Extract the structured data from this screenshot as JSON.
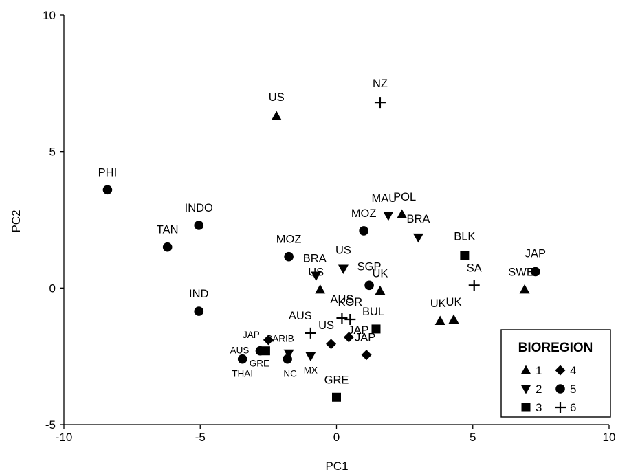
{
  "chart_data": {
    "type": "scatter",
    "xlabel": "PC1",
    "ylabel": "PC2",
    "xlim": [
      -10,
      10
    ],
    "ylim": [
      -5,
      10
    ],
    "xticks": [
      -10,
      -5,
      0,
      5,
      10
    ],
    "yticks": [
      -5,
      0,
      5,
      10
    ],
    "grid": false,
    "legend": {
      "title": "BIOREGION",
      "placement": "bottom-right",
      "entries": [
        {
          "label": "1",
          "marker": "triangle-up"
        },
        {
          "label": "4",
          "marker": "diamond"
        },
        {
          "label": "2",
          "marker": "triangle-down"
        },
        {
          "label": "5",
          "marker": "circle"
        },
        {
          "label": "3",
          "marker": "square"
        },
        {
          "label": "6",
          "marker": "plus"
        }
      ]
    },
    "points": [
      {
        "label": "US",
        "bioregion": 1,
        "x": -2.2,
        "y": 6.3
      },
      {
        "label": "POL",
        "bioregion": 1,
        "x": 2.4,
        "y": 2.7
      },
      {
        "label": "UK",
        "bioregion": 1,
        "x": 1.6,
        "y": -0.1
      },
      {
        "label": "US",
        "bioregion": 1,
        "x": -0.6,
        "y": -0.05
      },
      {
        "label": "UK",
        "bioregion": 1,
        "x": 3.8,
        "y": -1.2
      },
      {
        "label": "UK",
        "bioregion": 1,
        "x": 4.3,
        "y": -1.15
      },
      {
        "label": "SWE",
        "bioregion": 1,
        "x": 6.9,
        "y": -0.05
      },
      {
        "label": "MAU",
        "bioregion": 2,
        "x": 1.9,
        "y": 2.65
      },
      {
        "label": "BRA",
        "bioregion": 2,
        "x": 3.0,
        "y": 1.85
      },
      {
        "label": "US",
        "bioregion": 2,
        "x": 0.25,
        "y": 0.7
      },
      {
        "label": "BRA",
        "bioregion": 2,
        "x": -0.75,
        "y": 0.45
      },
      {
        "label": "CARIB",
        "bioregion": 2,
        "x": -1.75,
        "y": -2.4
      },
      {
        "label": "MX",
        "bioregion": 2,
        "x": -0.95,
        "y": -2.5
      },
      {
        "label": "BLK",
        "bioregion": 3,
        "x": 4.7,
        "y": 1.2
      },
      {
        "label": "BUL",
        "bioregion": 3,
        "x": 1.45,
        "y": -1.5
      },
      {
        "label": "GRE",
        "bioregion": 3,
        "x": 0.0,
        "y": -4.0
      },
      {
        "label": "GRE",
        "bioregion": 3,
        "x": -2.6,
        "y": -2.3
      },
      {
        "label": "JAP",
        "bioregion": 4,
        "x": -2.5,
        "y": -1.9
      },
      {
        "label": "US",
        "bioregion": 4,
        "x": -0.2,
        "y": -2.05
      },
      {
        "label": "JAP",
        "bioregion": 4,
        "x": 0.45,
        "y": -1.8
      },
      {
        "label": "JAP",
        "bioregion": 4,
        "x": 1.1,
        "y": -2.45
      },
      {
        "label": "PHI",
        "bioregion": 5,
        "x": -8.4,
        "y": 3.6
      },
      {
        "label": "INDO",
        "bioregion": 5,
        "x": -5.05,
        "y": 2.3
      },
      {
        "label": "TAN",
        "bioregion": 5,
        "x": -6.2,
        "y": 1.5
      },
      {
        "label": "MOZ",
        "bioregion": 5,
        "x": -1.75,
        "y": 1.15
      },
      {
        "label": "MOZ",
        "bioregion": 5,
        "x": 1.0,
        "y": 2.1
      },
      {
        "label": "SGP",
        "bioregion": 5,
        "x": 1.2,
        "y": 0.1
      },
      {
        "label": "JAP",
        "bioregion": 5,
        "x": 7.3,
        "y": 0.6
      },
      {
        "label": "IND",
        "bioregion": 5,
        "x": -5.05,
        "y": -0.85
      },
      {
        "label": "AUS",
        "bioregion": 5,
        "x": -2.8,
        "y": -2.3
      },
      {
        "label": "THAI",
        "bioregion": 5,
        "x": -3.45,
        "y": -2.6
      },
      {
        "label": "NC",
        "bioregion": 5,
        "x": -1.8,
        "y": -2.6
      },
      {
        "label": "NZ",
        "bioregion": 6,
        "x": 1.6,
        "y": 6.8
      },
      {
        "label": "SA",
        "bioregion": 6,
        "x": 5.05,
        "y": 0.1
      },
      {
        "label": "AUS",
        "bioregion": 6,
        "x": 0.2,
        "y": -1.1
      },
      {
        "label": "KOR",
        "bioregion": 6,
        "x": 0.5,
        "y": -1.15
      },
      {
        "label": "AUS",
        "bioregion": 6,
        "x": -0.95,
        "y": -1.65
      }
    ]
  }
}
